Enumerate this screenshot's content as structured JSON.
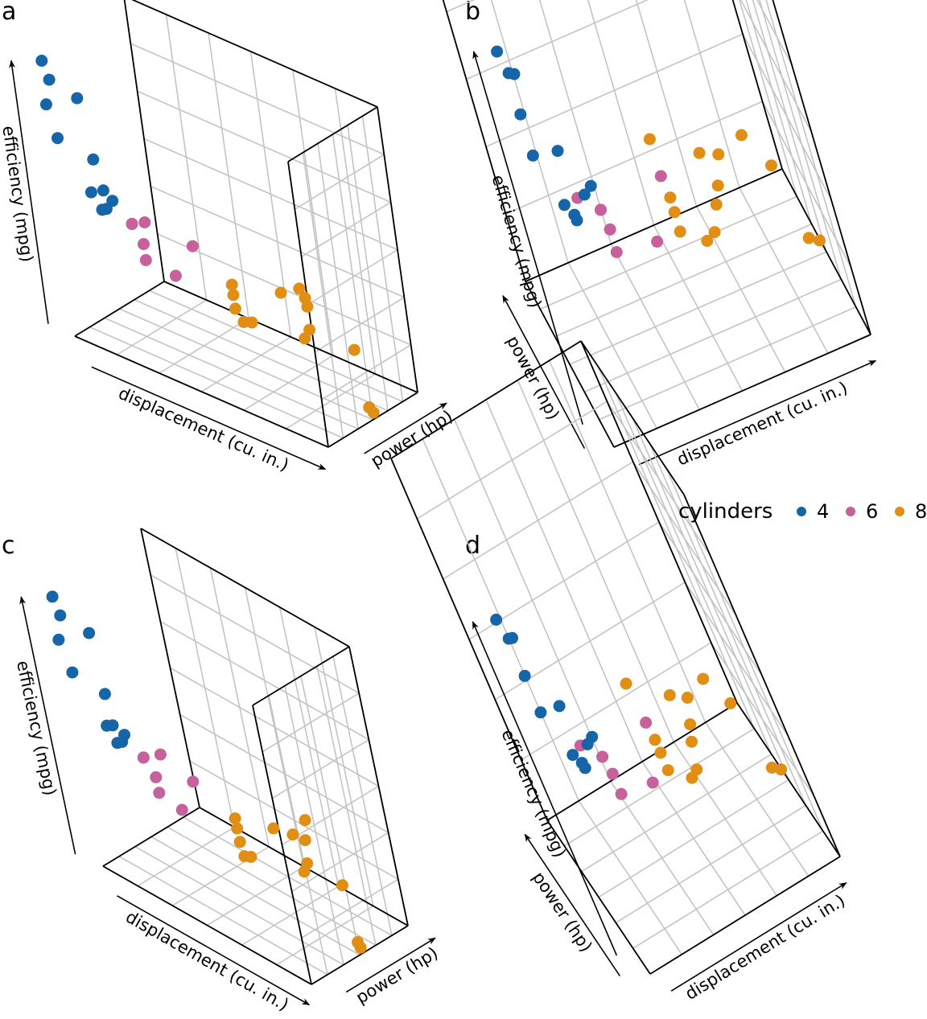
{
  "colors": {
    "4": "#1565a8",
    "6": "#c6619c",
    "8": "#e08f14"
  },
  "legend": {
    "title": "cylinders",
    "items": [
      {
        "label": "4",
        "color": "#1565a8"
      },
      {
        "label": "6",
        "color": "#c6619c"
      },
      {
        "label": "8",
        "color": "#e08f14"
      }
    ]
  },
  "chart_data": [
    {
      "panel": "a",
      "type": "scatter",
      "view": "3d",
      "axes": {
        "x": "displacement (cu. in.)",
        "y": "power (hp)",
        "z": "efficiency (mpg)"
      },
      "series": [
        {
          "name": "4",
          "points": [
            {
              "displacement": 78.7,
              "power": 66,
              "efficiency": 32.4
            },
            {
              "displacement": 75.7,
              "power": 52,
              "efficiency": 30.4
            },
            {
              "displacement": 71.1,
              "power": 65,
              "efficiency": 33.9
            },
            {
              "displacement": 79.0,
              "power": 66,
              "efficiency": 27.3
            },
            {
              "displacement": 108.0,
              "power": 93,
              "efficiency": 22.8
            },
            {
              "displacement": 146.7,
              "power": 62,
              "efficiency": 24.4
            },
            {
              "displacement": 140.8,
              "power": 95,
              "efficiency": 22.8
            },
            {
              "displacement": 120.1,
              "power": 97,
              "efficiency": 21.5
            },
            {
              "displacement": 120.3,
              "power": 91,
              "efficiency": 26.0
            },
            {
              "displacement": 95.1,
              "power": 113,
              "efficiency": 30.4
            },
            {
              "displacement": 121.0,
              "power": 109,
              "efficiency": 21.4
            }
          ]
        },
        {
          "name": "6",
          "points": [
            {
              "displacement": 160.0,
              "power": 110,
              "efficiency": 21.0
            },
            {
              "displacement": 160.0,
              "power": 110,
              "efficiency": 21.0
            },
            {
              "displacement": 258.0,
              "power": 110,
              "efficiency": 21.4
            },
            {
              "displacement": 225.0,
              "power": 105,
              "efficiency": 18.1
            },
            {
              "displacement": 167.6,
              "power": 123,
              "efficiency": 19.2
            },
            {
              "displacement": 167.6,
              "power": 123,
              "efficiency": 17.8
            },
            {
              "displacement": 145.0,
              "power": 175,
              "efficiency": 19.7
            }
          ]
        },
        {
          "name": "8",
          "points": [
            {
              "displacement": 360.0,
              "power": 175,
              "efficiency": 18.7
            },
            {
              "displacement": 360.0,
              "power": 245,
              "efficiency": 14.3
            },
            {
              "displacement": 275.8,
              "power": 180,
              "efficiency": 16.4
            },
            {
              "displacement": 275.8,
              "power": 180,
              "efficiency": 17.3
            },
            {
              "displacement": 275.8,
              "power": 180,
              "efficiency": 15.2
            },
            {
              "displacement": 472.0,
              "power": 205,
              "efficiency": 10.4
            },
            {
              "displacement": 460.0,
              "power": 215,
              "efficiency": 10.4
            },
            {
              "displacement": 440.0,
              "power": 230,
              "efficiency": 14.7
            },
            {
              "displacement": 318.0,
              "power": 150,
              "efficiency": 15.5
            },
            {
              "displacement": 304.0,
              "power": 150,
              "efficiency": 15.2
            },
            {
              "displacement": 350.0,
              "power": 245,
              "efficiency": 13.3
            },
            {
              "displacement": 400.0,
              "power": 175,
              "efficiency": 19.2
            },
            {
              "displacement": 351.0,
              "power": 264,
              "efficiency": 15.8
            },
            {
              "displacement": 301.0,
              "power": 335,
              "efficiency": 15.0
            }
          ]
        }
      ]
    },
    {
      "panel": "b",
      "type": "scatter",
      "view": "3d",
      "same_data_as": "a",
      "axes": {
        "x": "displacement (cu. in.)",
        "y": "power (hp)",
        "z": "efficiency (mpg)"
      }
    },
    {
      "panel": "c",
      "type": "scatter",
      "view": "3d",
      "same_data_as": "a",
      "axes": {
        "x": "displacement (cu. in.)",
        "y": "power (hp)",
        "z": "efficiency (mpg)"
      }
    },
    {
      "panel": "d",
      "type": "scatter",
      "view": "3d",
      "same_data_as": "a",
      "axes": {
        "x": "displacement (cu. in.)",
        "y": "power (hp)",
        "z": "efficiency (mpg)"
      }
    }
  ]
}
